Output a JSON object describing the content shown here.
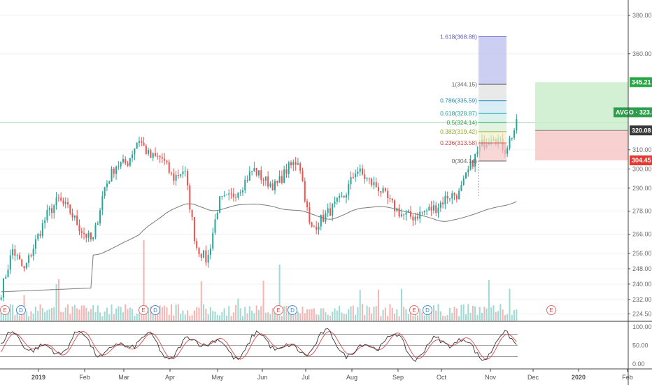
{
  "chart_data": {
    "type": "candlestick",
    "symbol_tag": "AVGO · 323.54",
    "last_price_tag": "320.08",
    "target_tag": "345.21",
    "stop_tag": "304.45",
    "ylim": [
      221,
      388
    ],
    "y_ticks": [
      "380.00",
      "360.00",
      "345.21",
      "320.08",
      "310.00",
      "300.00",
      "290.00",
      "278.00",
      "266.00",
      "256.00",
      "248.00",
      "240.00",
      "232.00",
      "224.50"
    ],
    "y_tick_values": [
      380,
      360,
      345.21,
      320.08,
      310,
      300,
      290,
      278,
      266,
      256,
      248,
      240,
      232,
      224.5
    ],
    "x_labels": [
      "2019",
      "Feb",
      "Mar",
      "Apr",
      "May",
      "Jun",
      "Jul",
      "Aug",
      "Sep",
      "Oct",
      "Nov",
      "Dec",
      "2020",
      "Feb"
    ],
    "fib_levels": [
      {
        "label": "1.618(368.88)",
        "price": 368.88,
        "color": "#5a5ec8"
      },
      {
        "label": "1(344.15)",
        "price": 344.15,
        "color": "#666666"
      },
      {
        "label": "0.786(335.59)",
        "price": 335.59,
        "color": "#2b8ab5"
      },
      {
        "label": "0.618(328.87)",
        "price": 328.87,
        "color": "#1fa39a"
      },
      {
        "label": "0.5(324.14)",
        "price": 324.14,
        "color": "#3aa34a"
      },
      {
        "label": "0.382(319.42)",
        "price": 319.42,
        "color": "#8ea31f"
      },
      {
        "label": "0.236(313.58)",
        "price": 313.58,
        "color": "#d04545"
      },
      {
        "label": "0(304.14)",
        "price": 304.14,
        "color": "#666666"
      }
    ],
    "trade_box": {
      "entry": 320.08,
      "target": 345.21,
      "stop": 304.45
    },
    "earnings_markers": [
      "E",
      "D",
      "E",
      "D",
      "E",
      "D",
      "E",
      "D",
      "E"
    ],
    "stoch_ticks": [
      "100.00",
      "50.00",
      "0.00"
    ],
    "stoch_tick_values": [
      100,
      50,
      0
    ],
    "ohlc_anchor_closes": [
      236,
      258,
      247,
      262,
      276,
      284,
      278,
      268,
      262,
      290,
      302,
      303,
      316,
      306,
      306,
      295,
      300,
      260,
      252,
      283,
      285,
      291,
      300,
      294,
      291,
      300,
      305,
      268,
      274,
      280,
      286,
      300,
      294,
      290,
      282,
      276,
      275,
      278,
      280,
      286,
      287,
      302,
      313,
      318,
      310,
      323
    ],
    "colors": {
      "up": "#26a69a",
      "down": "#ef5350",
      "ma": "#7a7a7a",
      "k": "#333333",
      "d": "#d94a4a",
      "target": "#28a745",
      "stop": "#e53935",
      "axis": "#555555"
    }
  }
}
